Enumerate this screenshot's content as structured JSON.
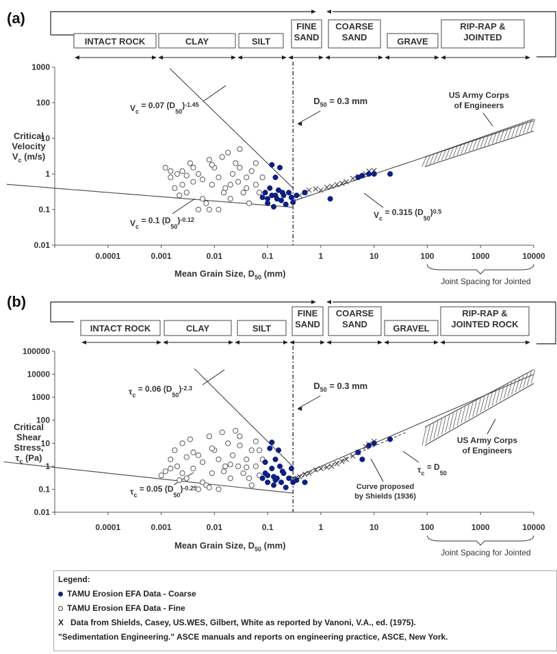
{
  "chart_data": [
    {
      "panel": "(a)",
      "type": "scatter",
      "y_scale": "log",
      "x_scale": "log",
      "ylabel": [
        "Critical",
        "Velocity",
        "Vc (m/s)"
      ],
      "xlabel": "Mean Grain Size, D50 (mm)",
      "x_tick_labels": [
        "0.0001",
        "0.001",
        "0.01",
        "0.1",
        "1",
        "10",
        "100",
        "1000",
        "10000"
      ],
      "y_tick_labels": [
        "0.01",
        "0.1",
        "1",
        "10",
        "100",
        "1000"
      ],
      "ylim": [
        0.01,
        1000
      ],
      "joint_spacing_label": "Joint Spacing for Jointed",
      "bands": [
        "INTACT ROCK",
        "CLAY",
        "SILT",
        "FINE SAND",
        "COARSE SAND",
        "GRAVE",
        "RIP-RAP & JOINTED"
      ],
      "divider_label": "D50 = 0.3 mm",
      "annotations": {
        "eq_upper": "Vc = 0.07 (D50)-1.45",
        "eq_lower": "Vc = 0.1 (D50)-0.12",
        "eq_coarse": "Vc = 0.315 (D50)0.5",
        "army": [
          "US Army Corps",
          "of Engineers"
        ]
      },
      "series": [
        {
          "name": "TAMU Erosion EFA Data - Coarse",
          "points": [
            [
              0.08,
              0.22
            ],
            [
              0.09,
              0.3
            ],
            [
              0.1,
              0.15
            ],
            [
              0.11,
              0.4
            ],
            [
              0.12,
              0.25
            ],
            [
              0.12,
              1.8
            ],
            [
              0.13,
              0.12
            ],
            [
              0.14,
              0.8
            ],
            [
              0.15,
              0.2
            ],
            [
              0.16,
              0.35
            ],
            [
              0.17,
              1.5
            ],
            [
              0.18,
              0.18
            ],
            [
              0.2,
              0.25
            ],
            [
              0.22,
              0.14
            ],
            [
              0.25,
              0.3
            ],
            [
              0.28,
              0.22
            ],
            [
              0.3,
              0.16
            ],
            [
              0.35,
              0.25
            ],
            [
              0.5,
              0.3
            ],
            [
              1.5,
              0.2
            ],
            [
              5,
              0.8
            ],
            [
              6,
              0.9
            ],
            [
              8,
              1.0
            ],
            [
              10,
              1.0
            ],
            [
              20,
              1.0
            ],
            [
              0.1,
              0.2
            ],
            [
              0.14,
              0.25
            ],
            [
              0.19,
              0.3
            ]
          ]
        },
        {
          "name": "TAMU Erosion EFA Data - Fine",
          "points": [
            [
              0.0012,
              1.5
            ],
            [
              0.0015,
              0.8
            ],
            [
              0.0018,
              0.4
            ],
            [
              0.002,
              1.0
            ],
            [
              0.0025,
              1.2
            ],
            [
              0.003,
              0.3
            ],
            [
              0.0035,
              2.0
            ],
            [
              0.004,
              0.6
            ],
            [
              0.005,
              1.0
            ],
            [
              0.006,
              0.2
            ],
            [
              0.007,
              0.15
            ],
            [
              0.008,
              2.5
            ],
            [
              0.009,
              0.5
            ],
            [
              0.01,
              1.5
            ],
            [
              0.012,
              0.8
            ],
            [
              0.014,
              3.0
            ],
            [
              0.016,
              0.4
            ],
            [
              0.018,
              4.0
            ],
            [
              0.02,
              0.2
            ],
            [
              0.022,
              1.0
            ],
            [
              0.025,
              2.0
            ],
            [
              0.028,
              0.6
            ],
            [
              0.03,
              1.5
            ],
            [
              0.035,
              0.3
            ],
            [
              0.04,
              0.8
            ],
            [
              0.045,
              0.15
            ],
            [
              0.05,
              1.2
            ],
            [
              0.06,
              0.5
            ],
            [
              0.07,
              0.3
            ],
            [
              0.08,
              0.8
            ],
            [
              0.005,
              0.1
            ],
            [
              0.008,
              0.1
            ],
            [
              0.012,
              0.1
            ],
            [
              0.02,
              0.5
            ],
            [
              0.03,
              5.0
            ],
            [
              0.0015,
              1.2
            ],
            [
              0.0025,
              0.5
            ],
            [
              0.004,
              1.5
            ],
            [
              0.006,
              0.7
            ],
            [
              0.015,
              0.3
            ],
            [
              0.06,
              2.0
            ],
            [
              0.009,
              1.8
            ],
            [
              0.04,
              0.4
            ],
            [
              0.0022,
              0.25
            ],
            [
              0.003,
              0.9
            ]
          ]
        },
        {
          "name": "Data from Shields, Casey, US.WES, Gilbert, White",
          "points": [
            [
              0.3,
              0.22
            ],
            [
              0.4,
              0.25
            ],
            [
              0.5,
              0.3
            ],
            [
              0.6,
              0.35
            ],
            [
              0.8,
              0.38
            ],
            [
              1,
              0.35
            ],
            [
              1.3,
              0.42
            ],
            [
              1.6,
              0.45
            ],
            [
              2,
              0.5
            ],
            [
              2.5,
              0.55
            ],
            [
              3,
              0.6
            ],
            [
              4,
              0.75
            ],
            [
              5,
              0.85
            ],
            [
              7,
              1.0
            ],
            [
              8,
              1.2
            ],
            [
              10,
              1.25
            ]
          ]
        }
      ]
    },
    {
      "panel": "(b)",
      "type": "scatter",
      "y_scale": "log",
      "x_scale": "log",
      "ylabel": [
        "Critical",
        "Shear",
        "Stress,",
        "τc (Pa)"
      ],
      "xlabel": "Mean Grain Size, D50 (mm)",
      "x_tick_labels": [
        "0.0001",
        "0.001",
        "0.01",
        "0.1",
        "1",
        "10",
        "100",
        "1000",
        "10000"
      ],
      "y_tick_labels": [
        "0.01",
        "0.1",
        "1",
        "10",
        "100",
        "1000",
        "10000",
        "100000"
      ],
      "ylim": [
        0.01,
        100000
      ],
      "joint_spacing_label": "Joint Spacing for Jointed",
      "bands": [
        "INTACT ROCK",
        "CLAY",
        "SILT",
        "FINE SAND",
        "COARSE SAND",
        "GRAVEL",
        "RIP-RAP & JOINTED ROCK"
      ],
      "divider_label": "D50 = 0.3 mm",
      "annotations": {
        "eq_upper": "τc = 0.06 (D50)-2.3",
        "eq_lower": "τc = 0.05 (D50)-0.25",
        "eq_coarse": "τc = D50",
        "shields": [
          "Curve proposed",
          "by Shields (1936)"
        ],
        "army": [
          "US Army Corps",
          "of Engineers"
        ]
      },
      "series": [
        {
          "name": "TAMU Erosion EFA Data - Coarse",
          "points": [
            [
              0.08,
              0.3
            ],
            [
              0.09,
              0.5
            ],
            [
              0.1,
              0.2
            ],
            [
              0.11,
              6.0
            ],
            [
              0.12,
              0.8
            ],
            [
              0.12,
              11.0
            ],
            [
              0.13,
              0.15
            ],
            [
              0.14,
              2.0
            ],
            [
              0.15,
              0.3
            ],
            [
              0.16,
              5.0
            ],
            [
              0.17,
              1.0
            ],
            [
              0.18,
              0.2
            ],
            [
              0.2,
              0.5
            ],
            [
              0.22,
              0.12
            ],
            [
              0.25,
              0.3
            ],
            [
              0.28,
              0.8
            ],
            [
              0.3,
              0.2
            ],
            [
              0.35,
              0.25
            ],
            [
              0.5,
              0.2
            ],
            [
              5,
              4.0
            ],
            [
              6,
              2.0
            ],
            [
              8,
              8.0
            ],
            [
              10,
              10.0
            ],
            [
              20,
              15.0
            ],
            [
              0.1,
              0.4
            ],
            [
              0.14,
              0.25
            ],
            [
              0.19,
              0.6
            ],
            [
              0.09,
              1.5
            ],
            [
              0.13,
              0.35
            ]
          ]
        },
        {
          "name": "TAMU Erosion EFA Data - Fine",
          "points": [
            [
              0.001,
              0.4
            ],
            [
              0.0012,
              0.6
            ],
            [
              0.0015,
              2.0
            ],
            [
              0.0018,
              5.0
            ],
            [
              0.002,
              1.0
            ],
            [
              0.0025,
              10.0
            ],
            [
              0.003,
              0.3
            ],
            [
              0.0035,
              15.0
            ],
            [
              0.004,
              0.8
            ],
            [
              0.005,
              3.0
            ],
            [
              0.006,
              0.2
            ],
            [
              0.007,
              0.15
            ],
            [
              0.008,
              20.0
            ],
            [
              0.009,
              0.5
            ],
            [
              0.01,
              5.0
            ],
            [
              0.012,
              2.0
            ],
            [
              0.014,
              30.0
            ],
            [
              0.016,
              1.0
            ],
            [
              0.018,
              10.0
            ],
            [
              0.02,
              0.3
            ],
            [
              0.022,
              3.0
            ],
            [
              0.025,
              35.0
            ],
            [
              0.028,
              1.0
            ],
            [
              0.03,
              8.0
            ],
            [
              0.035,
              0.5
            ],
            [
              0.04,
              2.0
            ],
            [
              0.045,
              0.3
            ],
            [
              0.05,
              5.0
            ],
            [
              0.06,
              1.0
            ],
            [
              0.07,
              0.4
            ],
            [
              0.08,
              2.0
            ],
            [
              0.005,
              0.1
            ],
            [
              0.008,
              0.12
            ],
            [
              0.012,
              0.1
            ],
            [
              0.02,
              1.2
            ],
            [
              0.03,
              20.0
            ],
            [
              0.0015,
              0.8
            ],
            [
              0.0025,
              0.5
            ],
            [
              0.004,
              4.0
            ],
            [
              0.006,
              1.5
            ],
            [
              0.015,
              0.6
            ],
            [
              0.06,
              12.0
            ],
            [
              0.009,
              6.0
            ],
            [
              0.04,
              0.9
            ],
            [
              0.0022,
              0.25
            ],
            [
              0.003,
              2.5
            ],
            [
              0.05,
              0.15
            ],
            [
              0.07,
              5.0
            ]
          ]
        },
        {
          "name": "Data from Shields, Casey, US.WES, Gilbert, White",
          "points": [
            [
              0.3,
              0.3
            ],
            [
              0.4,
              0.35
            ],
            [
              0.5,
              0.45
            ],
            [
              0.6,
              0.5
            ],
            [
              0.8,
              0.7
            ],
            [
              1,
              0.8
            ],
            [
              1.3,
              0.9
            ],
            [
              1.6,
              1.0
            ],
            [
              2,
              1.3
            ],
            [
              2.5,
              1.6
            ],
            [
              3,
              2.0
            ],
            [
              4,
              2.8
            ],
            [
              5,
              4.0
            ],
            [
              7,
              7.0
            ],
            [
              8,
              9.0
            ],
            [
              10,
              12.0
            ]
          ]
        }
      ]
    }
  ],
  "legend": {
    "title": "Legend:",
    "coarse": "TAMU Erosion EFA Data - Coarse",
    "fine": "TAMU Erosion EFA Data - Fine",
    "cross_symbol": "X",
    "cross": "Data from Shields, Casey, US.WES, Gilbert,  White as reported by Vanoni, V.A.,  ed. (1975).",
    "reference": "\"Sedimentation Engineering.\" ASCE manuals and reports on engineering practice, ASCE, New York."
  },
  "colors": {
    "coarse": "#0d1f80",
    "line": "#444444"
  }
}
